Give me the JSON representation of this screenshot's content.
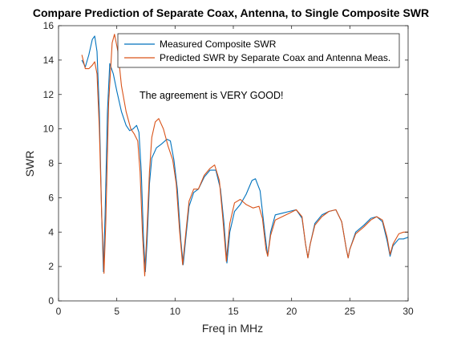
{
  "chart_data": {
    "type": "line",
    "title": "Compare Prediction of Separate Coax, Antenna, to Single Composite SWR",
    "xlabel": "Freq in MHz",
    "ylabel": "SWR",
    "xlim": [
      0,
      30
    ],
    "ylim": [
      0,
      16
    ],
    "xticks": [
      0,
      5,
      10,
      15,
      20,
      25,
      30
    ],
    "yticks": [
      0,
      2,
      4,
      6,
      8,
      10,
      12,
      14,
      16
    ],
    "grid": false,
    "legend_position": "top-right",
    "annotation": "The agreement is VERY GOOD!",
    "series": [
      {
        "name": "Measured Composite SWR",
        "color": "#0072BD",
        "points": [
          [
            2.0,
            14.0
          ],
          [
            2.3,
            13.6
          ],
          [
            2.6,
            14.3
          ],
          [
            2.9,
            15.2
          ],
          [
            3.1,
            15.4
          ],
          [
            3.3,
            14.5
          ],
          [
            3.5,
            11.0
          ],
          [
            3.7,
            5.0
          ],
          [
            3.85,
            1.7
          ],
          [
            4.0,
            5.0
          ],
          [
            4.2,
            11.0
          ],
          [
            4.4,
            13.8
          ],
          [
            4.7,
            13.2
          ],
          [
            5.0,
            12.2
          ],
          [
            5.4,
            11.0
          ],
          [
            5.8,
            10.2
          ],
          [
            6.1,
            9.9
          ],
          [
            6.4,
            10.0
          ],
          [
            6.7,
            10.2
          ],
          [
            6.9,
            9.8
          ],
          [
            7.1,
            7.5
          ],
          [
            7.3,
            3.5
          ],
          [
            7.45,
            1.7
          ],
          [
            7.6,
            3.5
          ],
          [
            7.8,
            6.8
          ],
          [
            8.0,
            8.3
          ],
          [
            8.4,
            8.9
          ],
          [
            8.8,
            9.1
          ],
          [
            9.3,
            9.4
          ],
          [
            9.6,
            9.3
          ],
          [
            9.9,
            8.2
          ],
          [
            10.2,
            6.5
          ],
          [
            10.5,
            3.5
          ],
          [
            10.7,
            2.1
          ],
          [
            10.9,
            3.5
          ],
          [
            11.2,
            5.5
          ],
          [
            11.6,
            6.3
          ],
          [
            12.0,
            6.5
          ],
          [
            12.5,
            7.2
          ],
          [
            13.0,
            7.6
          ],
          [
            13.5,
            7.6
          ],
          [
            13.9,
            6.5
          ],
          [
            14.2,
            4.5
          ],
          [
            14.45,
            2.2
          ],
          [
            14.7,
            4.0
          ],
          [
            15.1,
            5.2
          ],
          [
            15.6,
            5.6
          ],
          [
            16.1,
            6.2
          ],
          [
            16.6,
            7.0
          ],
          [
            16.9,
            7.1
          ],
          [
            17.3,
            6.4
          ],
          [
            17.7,
            4.0
          ],
          [
            17.95,
            2.6
          ],
          [
            18.2,
            4.0
          ],
          [
            18.6,
            5.0
          ],
          [
            19.2,
            5.1
          ],
          [
            19.8,
            5.2
          ],
          [
            20.4,
            5.3
          ],
          [
            20.9,
            4.8
          ],
          [
            21.2,
            3.3
          ],
          [
            21.4,
            2.5
          ],
          [
            21.6,
            3.3
          ],
          [
            22.0,
            4.5
          ],
          [
            22.6,
            5.0
          ],
          [
            23.2,
            5.2
          ],
          [
            23.8,
            5.3
          ],
          [
            24.3,
            4.6
          ],
          [
            24.7,
            3.0
          ],
          [
            24.85,
            2.5
          ],
          [
            25.0,
            3.0
          ],
          [
            25.5,
            4.0
          ],
          [
            26.2,
            4.4
          ],
          [
            26.8,
            4.8
          ],
          [
            27.3,
            4.9
          ],
          [
            27.8,
            4.6
          ],
          [
            28.2,
            3.5
          ],
          [
            28.45,
            2.6
          ],
          [
            28.7,
            3.2
          ],
          [
            29.2,
            3.6
          ],
          [
            29.6,
            3.6
          ],
          [
            30.0,
            3.7
          ]
        ]
      },
      {
        "name": "Predicted SWR by Separate Coax and Antenna Meas.",
        "color": "#D95319",
        "points": [
          [
            2.0,
            14.3
          ],
          [
            2.3,
            13.5
          ],
          [
            2.6,
            13.5
          ],
          [
            2.9,
            13.7
          ],
          [
            3.1,
            13.9
          ],
          [
            3.3,
            13.2
          ],
          [
            3.5,
            10.0
          ],
          [
            3.7,
            5.0
          ],
          [
            3.9,
            1.6
          ],
          [
            4.05,
            4.5
          ],
          [
            4.3,
            11.5
          ],
          [
            4.6,
            15.0
          ],
          [
            4.8,
            15.5
          ],
          [
            5.1,
            14.5
          ],
          [
            5.4,
            12.5
          ],
          [
            5.8,
            11.0
          ],
          [
            6.2,
            10.0
          ],
          [
            6.5,
            9.7
          ],
          [
            6.8,
            9.3
          ],
          [
            7.0,
            7.5
          ],
          [
            7.2,
            4.0
          ],
          [
            7.4,
            1.45
          ],
          [
            7.55,
            3.5
          ],
          [
            7.8,
            7.5
          ],
          [
            8.0,
            9.5
          ],
          [
            8.3,
            10.4
          ],
          [
            8.6,
            10.6
          ],
          [
            9.0,
            10.0
          ],
          [
            9.4,
            9.0
          ],
          [
            9.8,
            8.2
          ],
          [
            10.1,
            6.8
          ],
          [
            10.4,
            4.0
          ],
          [
            10.65,
            2.1
          ],
          [
            10.9,
            3.8
          ],
          [
            11.2,
            5.8
          ],
          [
            11.6,
            6.5
          ],
          [
            12.0,
            6.5
          ],
          [
            12.5,
            7.3
          ],
          [
            13.0,
            7.7
          ],
          [
            13.4,
            7.9
          ],
          [
            13.8,
            7.0
          ],
          [
            14.1,
            4.8
          ],
          [
            14.4,
            2.3
          ],
          [
            14.7,
            4.5
          ],
          [
            15.1,
            5.7
          ],
          [
            15.6,
            5.9
          ],
          [
            16.1,
            5.6
          ],
          [
            16.7,
            5.4
          ],
          [
            17.2,
            5.5
          ],
          [
            17.5,
            4.8
          ],
          [
            17.8,
            3.0
          ],
          [
            17.95,
            2.6
          ],
          [
            18.2,
            3.8
          ],
          [
            18.6,
            4.7
          ],
          [
            19.2,
            4.9
          ],
          [
            19.8,
            5.1
          ],
          [
            20.4,
            5.3
          ],
          [
            20.9,
            4.9
          ],
          [
            21.2,
            3.3
          ],
          [
            21.4,
            2.5
          ],
          [
            21.6,
            3.3
          ],
          [
            22.0,
            4.4
          ],
          [
            22.6,
            4.9
          ],
          [
            23.2,
            5.2
          ],
          [
            23.8,
            5.3
          ],
          [
            24.3,
            4.6
          ],
          [
            24.7,
            3.0
          ],
          [
            24.85,
            2.5
          ],
          [
            25.0,
            3.0
          ],
          [
            25.5,
            3.9
          ],
          [
            26.2,
            4.3
          ],
          [
            26.8,
            4.7
          ],
          [
            27.3,
            4.9
          ],
          [
            27.8,
            4.7
          ],
          [
            28.2,
            3.7
          ],
          [
            28.45,
            2.7
          ],
          [
            28.7,
            3.3
          ],
          [
            29.2,
            3.9
          ],
          [
            29.6,
            4.0
          ],
          [
            30.0,
            4.0
          ]
        ]
      }
    ]
  }
}
